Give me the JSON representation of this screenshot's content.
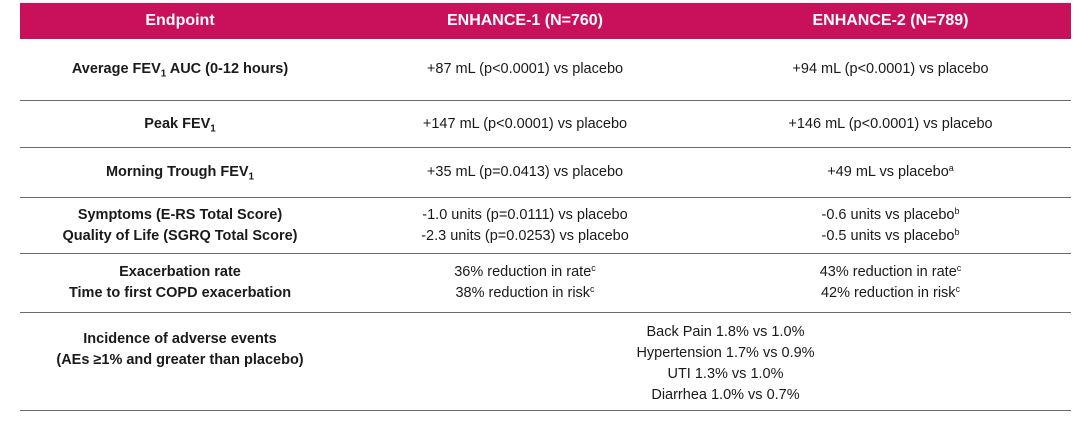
{
  "header": {
    "endpoint": "Endpoint",
    "enhance1": "ENHANCE-1 (N=760)",
    "enhance2": "ENHANCE-2 (N=789)"
  },
  "rows": {
    "auc": {
      "label_pre": "Average FEV",
      "label_sub": "1",
      "label_post": " AUC (0-12 hours)",
      "e1": "+87 mL (p<0.0001) vs placebo",
      "e2": "+94 mL (p<0.0001) vs placebo"
    },
    "peak": {
      "label_pre": "Peak FEV",
      "label_sub": "1",
      "e1": "+147 mL (p<0.0001) vs placebo",
      "e2": "+146 mL (p<0.0001) vs placebo"
    },
    "trough": {
      "label_pre": "Morning Trough FEV",
      "label_sub": "1",
      "e1": "+35 mL (p=0.0413) vs placebo",
      "e2": "+49 mL vs placebo",
      "e2_sup": "a"
    },
    "symptoms": {
      "label1": "Symptoms (E-RS Total Score)",
      "label2": "Quality of Life (SGRQ Total Score)",
      "e1_line1": "-1.0 units (p=0.0111) vs placebo",
      "e1_line2": "-2.3 units (p=0.0253) vs placebo",
      "e2_line1": "-0.6 units vs placebo",
      "e2_line1_sup": "b",
      "e2_line2": "-0.5 units vs placebo",
      "e2_line2_sup": "b"
    },
    "exacerbation": {
      "label1": "Exacerbation rate",
      "label2": "Time to first COPD exacerbation",
      "e1_line1": "36% reduction in rate",
      "e1_line1_sup": "c",
      "e1_line2": "38% reduction in risk",
      "e1_line2_sup": "c",
      "e2_line1": "43% reduction in rate",
      "e2_line1_sup": "c",
      "e2_line2": "42% reduction in risk",
      "e2_line2_sup": "c"
    },
    "adverse": {
      "label1": "Incidence of adverse events",
      "label2": "(AEs ≥1% and greater than placebo)",
      "items": [
        "Back Pain 1.8% vs 1.0%",
        "Hypertension 1.7% vs 0.9%",
        "UTI 1.3% vs 1.0%",
        "Diarrhea 1.0% vs 0.7%"
      ]
    }
  },
  "colors": {
    "header_bg": "#c8115a",
    "header_text": "#ffffff",
    "rule": "#6b6b6b"
  }
}
